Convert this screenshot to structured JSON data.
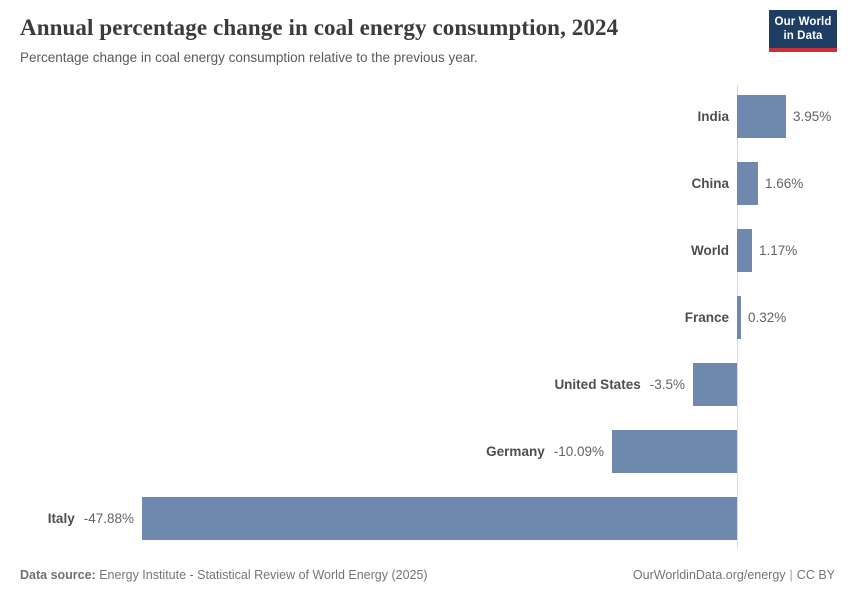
{
  "header": {
    "title": "Annual percentage change in coal energy consumption, 2024",
    "subtitle": "Percentage change in coal energy consumption relative to the previous year.",
    "logo": {
      "line1": "Our World",
      "line2": "in Data",
      "bg_color": "#1d3d63",
      "accent_color": "#c9303a"
    }
  },
  "chart_data": {
    "type": "bar",
    "orientation": "horizontal",
    "title": "Annual percentage change in coal energy consumption, 2024",
    "xlabel": "",
    "ylabel": "",
    "grid": false,
    "legend": false,
    "xlim": [
      -47.88,
      3.95
    ],
    "categories": [
      "India",
      "China",
      "World",
      "France",
      "United States",
      "Germany",
      "Italy"
    ],
    "values": [
      3.95,
      1.66,
      1.17,
      0.32,
      -3.5,
      -10.09,
      -47.88
    ],
    "value_labels": [
      "3.95%",
      "1.66%",
      "1.17%",
      "0.32%",
      "-3.5%",
      "-10.09%",
      "-47.88%"
    ],
    "bar_color": "#6e88ae",
    "axis_line_color": "#dcdcdc"
  },
  "footer": {
    "datasource_label": "Data source:",
    "datasource_value": " Energy Institute - Statistical Review of World Energy (2025)",
    "site_link": "OurWorldinData.org/energy",
    "separator": "|",
    "license": "CC BY"
  }
}
